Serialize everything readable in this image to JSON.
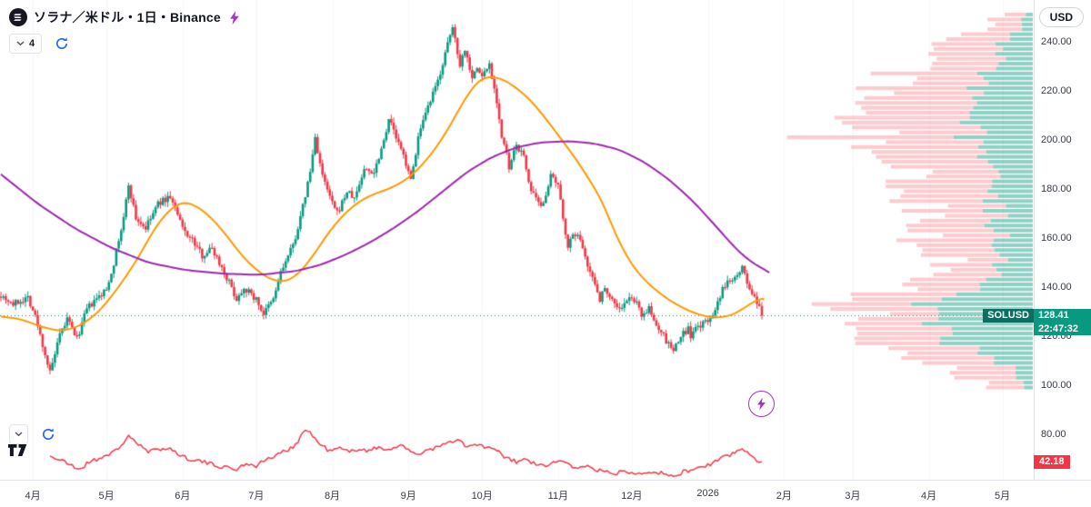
{
  "header": {
    "title": "ソラナ／米ドル・1日・Binance",
    "badge_count": "4"
  },
  "toolbar": {
    "currency_label": "USD"
  },
  "price_tag": {
    "symbol": "SOLUSD",
    "price": "128.41",
    "countdown": "22:47:32"
  },
  "indicator": {
    "value": "42.18"
  },
  "colors": {
    "up": "#089981",
    "down": "#F23645",
    "ma_fast": "#FF9800",
    "ma_slow": "#9C27B0",
    "rsi": "#F23645",
    "price_line": "#089981",
    "vp_sell": "rgba(247,82,95,0.30)",
    "vp_buy": "rgba(8,153,129,0.45)",
    "accent_blue": "#2962FF",
    "accent_purple": "#A333C8",
    "grid": "#F5F6FA",
    "axis_text": "#363A45"
  },
  "chart_data": {
    "type": "candlestick",
    "symbol": "SOLUSD",
    "interval": "1日",
    "exchange": "Binance",
    "last_price": 128.41,
    "price_axis": {
      "min": 80,
      "max": 257,
      "ticks": [
        240,
        220,
        200,
        180,
        160,
        140,
        120,
        100,
        80
      ]
    },
    "time_axis": {
      "months": [
        {
          "label": "4月",
          "day": 13
        },
        {
          "label": "5月",
          "day": 43
        },
        {
          "label": "6月",
          "day": 74
        },
        {
          "label": "7月",
          "day": 104
        },
        {
          "label": "8月",
          "day": 135
        },
        {
          "label": "9月",
          "day": 166
        },
        {
          "label": "10月",
          "day": 196
        },
        {
          "label": "11月",
          "day": 227
        },
        {
          "label": "12月",
          "day": 257
        },
        {
          "label": "2026",
          "day": 288
        },
        {
          "label": "2月",
          "day": 319
        },
        {
          "label": "3月",
          "day": 347
        },
        {
          "label": "4月",
          "day": 378
        },
        {
          "label": "5月",
          "day": 408
        }
      ]
    },
    "close_path": [
      [
        0,
        137
      ],
      [
        5,
        133
      ],
      [
        11,
        136
      ],
      [
        14,
        128
      ],
      [
        20,
        105
      ],
      [
        24,
        120
      ],
      [
        27,
        127
      ],
      [
        31,
        119
      ],
      [
        35,
        131
      ],
      [
        39,
        135
      ],
      [
        43,
        139
      ],
      [
        46,
        150
      ],
      [
        50,
        168
      ],
      [
        52,
        182
      ],
      [
        55,
        168
      ],
      [
        59,
        164
      ],
      [
        64,
        174
      ],
      [
        69,
        177
      ],
      [
        74,
        164
      ],
      [
        78,
        159
      ],
      [
        82,
        153
      ],
      [
        86,
        156
      ],
      [
        89,
        150
      ],
      [
        93,
        142
      ],
      [
        96,
        135
      ],
      [
        99,
        140
      ],
      [
        104,
        135
      ],
      [
        107,
        129
      ],
      [
        111,
        135
      ],
      [
        114,
        146
      ],
      [
        119,
        157
      ],
      [
        122,
        168
      ],
      [
        126,
        187
      ],
      [
        128,
        201
      ],
      [
        131,
        185
      ],
      [
        135,
        174
      ],
      [
        137,
        170
      ],
      [
        141,
        179
      ],
      [
        144,
        176
      ],
      [
        148,
        188
      ],
      [
        152,
        187
      ],
      [
        156,
        200
      ],
      [
        158,
        209
      ],
      [
        161,
        201
      ],
      [
        166,
        188
      ],
      [
        167,
        183
      ],
      [
        170,
        201
      ],
      [
        174,
        213
      ],
      [
        178,
        224
      ],
      [
        181,
        235
      ],
      [
        184,
        246
      ],
      [
        187,
        231
      ],
      [
        189,
        237
      ],
      [
        192,
        226
      ],
      [
        194,
        229
      ],
      [
        196,
        226
      ],
      [
        199,
        231
      ],
      [
        202,
        216
      ],
      [
        204,
        201
      ],
      [
        206,
        194
      ],
      [
        207,
        188
      ],
      [
        210,
        198
      ],
      [
        213,
        193
      ],
      [
        216,
        179
      ],
      [
        220,
        172
      ],
      [
        224,
        185
      ],
      [
        227,
        181
      ],
      [
        229,
        168
      ],
      [
        231,
        157
      ],
      [
        234,
        162
      ],
      [
        237,
        157
      ],
      [
        240,
        146
      ],
      [
        243,
        139
      ],
      [
        244,
        135
      ],
      [
        246,
        140
      ],
      [
        249,
        135
      ],
      [
        252,
        131
      ],
      [
        257,
        136
      ],
      [
        259,
        133
      ],
      [
        261,
        129
      ],
      [
        264,
        131
      ],
      [
        266,
        126
      ],
      [
        269,
        122
      ],
      [
        271,
        118
      ],
      [
        274,
        114
      ],
      [
        277,
        120
      ],
      [
        280,
        123
      ],
      [
        281,
        120
      ],
      [
        284,
        124
      ],
      [
        288,
        126
      ],
      [
        291,
        131
      ],
      [
        293,
        135
      ],
      [
        294,
        139
      ],
      [
        296,
        142
      ],
      [
        298,
        144
      ],
      [
        300,
        146
      ],
      [
        302,
        148
      ],
      [
        304,
        142
      ],
      [
        305,
        139
      ],
      [
        307,
        135
      ],
      [
        309,
        131
      ],
      [
        310,
        128.41
      ]
    ],
    "ma_fast_path": [
      [
        0,
        128
      ],
      [
        8,
        127
      ],
      [
        16,
        124
      ],
      [
        24,
        122
      ],
      [
        32,
        124
      ],
      [
        40,
        130
      ],
      [
        48,
        140
      ],
      [
        56,
        152
      ],
      [
        62,
        163
      ],
      [
        68,
        171
      ],
      [
        74,
        175
      ],
      [
        80,
        173
      ],
      [
        86,
        168
      ],
      [
        92,
        161
      ],
      [
        98,
        153
      ],
      [
        104,
        147
      ],
      [
        110,
        143
      ],
      [
        116,
        142
      ],
      [
        122,
        146
      ],
      [
        128,
        154
      ],
      [
        134,
        163
      ],
      [
        140,
        170
      ],
      [
        146,
        175
      ],
      [
        152,
        178
      ],
      [
        158,
        180
      ],
      [
        164,
        183
      ],
      [
        170,
        188
      ],
      [
        176,
        195
      ],
      [
        182,
        204
      ],
      [
        188,
        215
      ],
      [
        194,
        224
      ],
      [
        199,
        226
      ],
      [
        204,
        225
      ],
      [
        209,
        222
      ],
      [
        215,
        217
      ],
      [
        221,
        210
      ],
      [
        227,
        202
      ],
      [
        233,
        194
      ],
      [
        239,
        185
      ],
      [
        245,
        175
      ],
      [
        251,
        160
      ],
      [
        257,
        149
      ],
      [
        263,
        142
      ],
      [
        269,
        137
      ],
      [
        275,
        133
      ],
      [
        281,
        130
      ],
      [
        287,
        128
      ],
      [
        293,
        127.5
      ],
      [
        299,
        129
      ],
      [
        305,
        133
      ],
      [
        309,
        135.5
      ],
      [
        311,
        135
      ]
    ],
    "ma_slow_path": [
      [
        0,
        186
      ],
      [
        15,
        174
      ],
      [
        30,
        164
      ],
      [
        45,
        156
      ],
      [
        60,
        150
      ],
      [
        75,
        147
      ],
      [
        90,
        145.5
      ],
      [
        105,
        145
      ],
      [
        120,
        146.5
      ],
      [
        130,
        149
      ],
      [
        140,
        153
      ],
      [
        150,
        158
      ],
      [
        160,
        164
      ],
      [
        170,
        171
      ],
      [
        180,
        179
      ],
      [
        190,
        187
      ],
      [
        200,
        193
      ],
      [
        210,
        197
      ],
      [
        220,
        199
      ],
      [
        232,
        199.5
      ],
      [
        242,
        198.5
      ],
      [
        252,
        196
      ],
      [
        262,
        191
      ],
      [
        272,
        184
      ],
      [
        282,
        175
      ],
      [
        292,
        164
      ],
      [
        300,
        155
      ],
      [
        306,
        150
      ],
      [
        313,
        146
      ]
    ],
    "rsi_path": [
      [
        20,
        52
      ],
      [
        24,
        45
      ],
      [
        28,
        38
      ],
      [
        32,
        30
      ],
      [
        36,
        42
      ],
      [
        40,
        48
      ],
      [
        44,
        55
      ],
      [
        48,
        62
      ],
      [
        52,
        86
      ],
      [
        56,
        70
      ],
      [
        60,
        58
      ],
      [
        64,
        62
      ],
      [
        68,
        66
      ],
      [
        72,
        55
      ],
      [
        76,
        48
      ],
      [
        80,
        45
      ],
      [
        84,
        40
      ],
      [
        88,
        36
      ],
      [
        92,
        33
      ],
      [
        96,
        30
      ],
      [
        100,
        40
      ],
      [
        104,
        36
      ],
      [
        108,
        46
      ],
      [
        112,
        52
      ],
      [
        116,
        60
      ],
      [
        120,
        70
      ],
      [
        124,
        95
      ],
      [
        127,
        85
      ],
      [
        130,
        70
      ],
      [
        134,
        60
      ],
      [
        138,
        64
      ],
      [
        142,
        58
      ],
      [
        146,
        64
      ],
      [
        150,
        60
      ],
      [
        154,
        66
      ],
      [
        158,
        62
      ],
      [
        162,
        70
      ],
      [
        166,
        60
      ],
      [
        170,
        55
      ],
      [
        174,
        62
      ],
      [
        178,
        66
      ],
      [
        182,
        72
      ],
      [
        186,
        78
      ],
      [
        190,
        66
      ],
      [
        194,
        70
      ],
      [
        198,
        65
      ],
      [
        202,
        60
      ],
      [
        206,
        48
      ],
      [
        210,
        42
      ],
      [
        214,
        46
      ],
      [
        218,
        38
      ],
      [
        222,
        34
      ],
      [
        226,
        44
      ],
      [
        230,
        40
      ],
      [
        234,
        33
      ],
      [
        238,
        36
      ],
      [
        242,
        30
      ],
      [
        246,
        26
      ],
      [
        250,
        23
      ],
      [
        254,
        28
      ],
      [
        258,
        26
      ],
      [
        262,
        24
      ],
      [
        266,
        28
      ],
      [
        270,
        22
      ],
      [
        274,
        18
      ],
      [
        278,
        26
      ],
      [
        282,
        30
      ],
      [
        286,
        34
      ],
      [
        290,
        40
      ],
      [
        294,
        48
      ],
      [
        298,
        56
      ],
      [
        302,
        62
      ],
      [
        306,
        52
      ],
      [
        308,
        46
      ],
      [
        310,
        42.18
      ]
    ],
    "volume_profile": [
      [
        253,
        25,
        0.2
      ],
      [
        248,
        55,
        0.25
      ],
      [
        243,
        85,
        0.3
      ],
      [
        238,
        135,
        0.35
      ],
      [
        232,
        100,
        0.3
      ],
      [
        226,
        145,
        0.35
      ],
      [
        220,
        180,
        0.4
      ],
      [
        214,
        150,
        0.35
      ],
      [
        208,
        195,
        0.35
      ],
      [
        202,
        215,
        0.32
      ],
      [
        197,
        165,
        0.3
      ],
      [
        192,
        145,
        0.35
      ],
      [
        186,
        125,
        0.32
      ],
      [
        180,
        140,
        0.35
      ],
      [
        174,
        115,
        0.3
      ],
      [
        168,
        128,
        0.35
      ],
      [
        163,
        148,
        0.32
      ],
      [
        158,
        115,
        0.3
      ],
      [
        153,
        98,
        0.32
      ],
      [
        148,
        108,
        0.36
      ],
      [
        144,
        125,
        0.4
      ],
      [
        140,
        155,
        0.45
      ],
      [
        136,
        185,
        0.5
      ],
      [
        132,
        205,
        0.52
      ],
      [
        129,
        215,
        0.55
      ],
      [
        126,
        192,
        0.52
      ],
      [
        122,
        168,
        0.5
      ],
      [
        118,
        148,
        0.46
      ],
      [
        114,
        162,
        0.4
      ],
      [
        110,
        118,
        0.32
      ],
      [
        106,
        88,
        0.26
      ],
      [
        102,
        58,
        0.2
      ],
      [
        98,
        32,
        0.15
      ]
    ]
  }
}
